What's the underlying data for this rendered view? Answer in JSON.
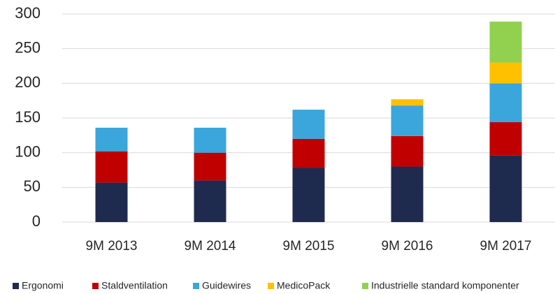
{
  "chart_data": {
    "type": "bar",
    "stacked": true,
    "categories": [
      "9M 2013",
      "9M 2014",
      "9M 2015",
      "9M 2016",
      "9M 2017"
    ],
    "series": [
      {
        "name": "Ergonomi",
        "color": "#1f2a4f",
        "values": [
          57,
          60,
          78,
          80,
          96
        ]
      },
      {
        "name": "Staldventilation",
        "color": "#c00000",
        "values": [
          45,
          40,
          42,
          44,
          48
        ]
      },
      {
        "name": "Guidewires",
        "color": "#3aa6dc",
        "values": [
          34,
          36,
          42,
          44,
          56
        ]
      },
      {
        "name": "MedicoPack",
        "color": "#ffc000",
        "values": [
          0,
          0,
          0,
          9,
          30
        ]
      },
      {
        "name": "Industrielle standard komponenter",
        "color": "#92d050",
        "values": [
          0,
          0,
          0,
          0,
          59
        ]
      }
    ],
    "ylim": [
      0,
      300
    ],
    "yticks": [
      0,
      50,
      100,
      150,
      200,
      250,
      300
    ],
    "grid": true,
    "legend": "bottom"
  }
}
